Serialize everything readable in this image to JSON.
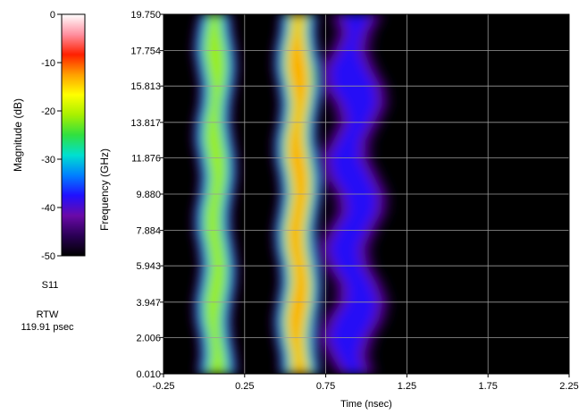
{
  "chart_data": {
    "type": "heatmap",
    "xlabel": "Time (nsec)",
    "ylabel": "Frequency (GHz)",
    "x_ticks": [
      "-0.25",
      "0.25",
      "0.75",
      "1.25",
      "1.75",
      "2.25"
    ],
    "x_tick_values": [
      -0.25,
      0.25,
      0.75,
      1.25,
      1.75,
      2.25
    ],
    "y_ticks": [
      "0.010",
      "2.006",
      "3.947",
      "5.943",
      "7.884",
      "9.880",
      "11.876",
      "13.817",
      "15.813",
      "17.754",
      "19.750"
    ],
    "y_tick_values": [
      0.01,
      2.006,
      3.947,
      5.943,
      7.884,
      9.88,
      11.876,
      13.817,
      15.813,
      17.754,
      19.75
    ],
    "xlim": [
      -0.25,
      2.25
    ],
    "ylim": [
      0.01,
      19.75
    ],
    "grid": true,
    "colorbar": {
      "label": "Magnitude (dB)",
      "ticks": [
        "0",
        "-10",
        "-20",
        "-30",
        "-40",
        "-50"
      ],
      "tick_values": [
        0,
        -10,
        -20,
        -30,
        -40,
        -50
      ],
      "range": [
        -50,
        0
      ],
      "colors": [
        "#000000",
        "#2a0055",
        "#6a0aa8",
        "#2010ff",
        "#0080ff",
        "#00e0d0",
        "#30e040",
        "#a8f000",
        "#ffff00",
        "#ffa000",
        "#ff2000",
        "#ff90a0",
        "#ffffff"
      ]
    },
    "series": [
      {
        "t": 0.07,
        "peak_db": -17,
        "width": 0.085
      },
      {
        "t": 0.58,
        "peak_db": -12,
        "width": 0.095
      },
      {
        "t": 0.92,
        "peak_db": -33,
        "width": 0.14
      }
    ]
  },
  "side": {
    "trace": "S11",
    "window_label": "RTW",
    "window_value": "119.91 psec"
  }
}
